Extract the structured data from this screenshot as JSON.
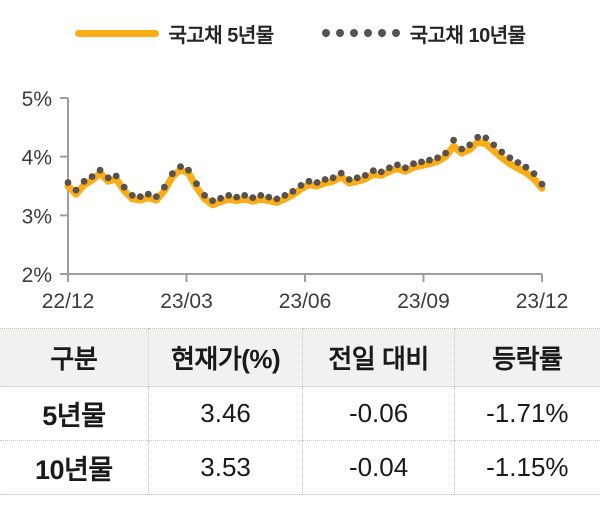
{
  "legend": {
    "series5_label": "국고채 5년물",
    "series10_label": "국고채 10년물"
  },
  "chart_data": {
    "type": "line",
    "title": "",
    "xlabel": "",
    "ylabel": "",
    "ylim": [
      2,
      5
    ],
    "grid": false,
    "legend_position": "top-center",
    "x_tick_labels": [
      "22/12",
      "23/03",
      "23/06",
      "23/09",
      "23/12"
    ],
    "y_ticks": [
      2,
      3,
      4,
      5
    ],
    "y_tick_labels": [
      "2%",
      "3%",
      "4%",
      "5%"
    ],
    "series": [
      {
        "name": "국고채 5년물",
        "style": "solid",
        "color": "#FBAD18",
        "values": [
          3.5,
          3.36,
          3.52,
          3.6,
          3.72,
          3.58,
          3.62,
          3.42,
          3.28,
          3.26,
          3.3,
          3.26,
          3.42,
          3.66,
          3.78,
          3.72,
          3.48,
          3.28,
          3.18,
          3.23,
          3.28,
          3.25,
          3.28,
          3.24,
          3.28,
          3.25,
          3.22,
          3.28,
          3.35,
          3.45,
          3.52,
          3.5,
          3.55,
          3.58,
          3.66,
          3.55,
          3.58,
          3.62,
          3.7,
          3.68,
          3.75,
          3.8,
          3.75,
          3.82,
          3.85,
          3.88,
          3.92,
          4.0,
          4.18,
          4.06,
          4.12,
          4.25,
          4.22,
          4.1,
          3.98,
          3.88,
          3.8,
          3.73,
          3.62,
          3.46
        ]
      },
      {
        "name": "국고채 10년물",
        "style": "dotted",
        "color": "#57524D",
        "values": [
          3.56,
          3.43,
          3.58,
          3.66,
          3.77,
          3.64,
          3.67,
          3.48,
          3.34,
          3.32,
          3.36,
          3.32,
          3.48,
          3.71,
          3.83,
          3.77,
          3.54,
          3.34,
          3.25,
          3.29,
          3.34,
          3.31,
          3.34,
          3.3,
          3.34,
          3.31,
          3.28,
          3.34,
          3.41,
          3.51,
          3.58,
          3.56,
          3.61,
          3.64,
          3.72,
          3.61,
          3.64,
          3.68,
          3.76,
          3.74,
          3.81,
          3.86,
          3.81,
          3.88,
          3.91,
          3.94,
          3.98,
          4.06,
          4.28,
          4.13,
          4.2,
          4.33,
          4.32,
          4.2,
          4.08,
          3.98,
          3.9,
          3.82,
          3.71,
          3.53
        ]
      }
    ]
  },
  "table": {
    "headers": [
      "구분",
      "현재가(%)",
      "전일 대비",
      "등락률"
    ],
    "rows": [
      {
        "label": "5년물",
        "price": "3.46",
        "change": "-0.06",
        "rate": "-1.71%"
      },
      {
        "label": "10년물",
        "price": "3.53",
        "change": "-0.04",
        "rate": "-1.15%"
      }
    ]
  },
  "colors": {
    "series5": "#FBAD18",
    "series10": "#57524D",
    "axis": "#9e9e9e",
    "header_bg": "#F1F1EF"
  }
}
